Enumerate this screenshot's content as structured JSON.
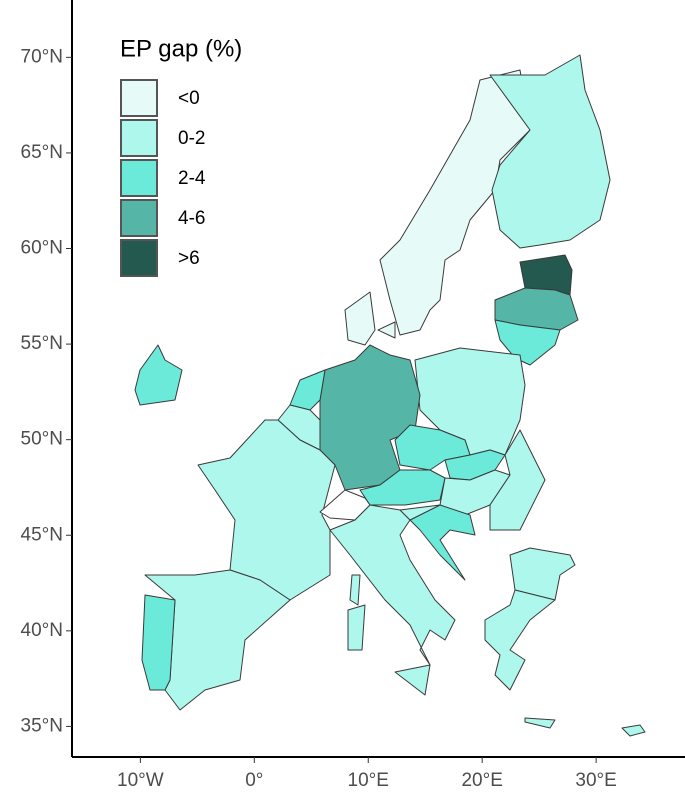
{
  "chart_data": {
    "type": "choropleth-map",
    "legend_title": "EP gap (%)",
    "legend": [
      {
        "label": "<0",
        "color": "#e6fbf8"
      },
      {
        "label": "0-2",
        "color": "#aef7ec"
      },
      {
        "label": "2-4",
        "color": "#6beada"
      },
      {
        "label": "4-6",
        "color": "#55b5a6"
      },
      {
        "label": ">6",
        "color": "#23594f"
      }
    ],
    "xlim": [
      -16,
      37.8
    ],
    "ylim": [
      33.4,
      73
    ],
    "xticks": [
      {
        "value": -10,
        "label": "10°W"
      },
      {
        "value": 0,
        "label": "0°"
      },
      {
        "value": 10,
        "label": "10°E"
      },
      {
        "value": 20,
        "label": "20°E"
      },
      {
        "value": 30,
        "label": "30°E"
      }
    ],
    "yticks": [
      {
        "value": 35,
        "label": "35°N"
      },
      {
        "value": 40,
        "label": "40°N"
      },
      {
        "value": 45,
        "label": "45°N"
      },
      {
        "value": 50,
        "label": "50°N"
      },
      {
        "value": 55,
        "label": "55°N"
      },
      {
        "value": 60,
        "label": "60°N"
      },
      {
        "value": 65,
        "label": "65°N"
      },
      {
        "value": 70,
        "label": "70°N"
      }
    ]
  }
}
